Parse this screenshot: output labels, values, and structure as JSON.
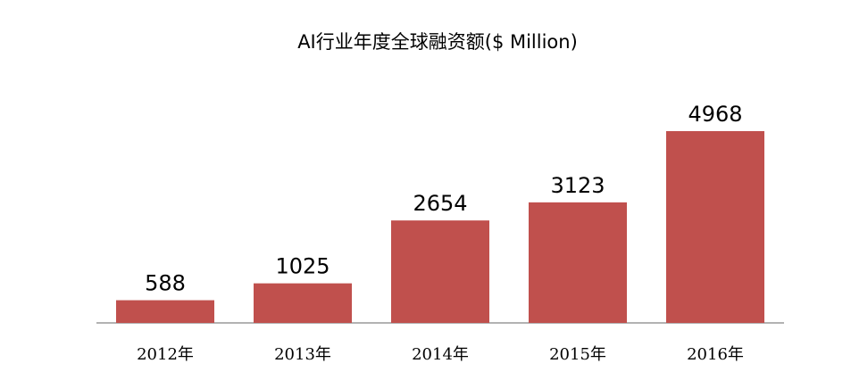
{
  "chart_data": {
    "type": "bar",
    "title": "AI行业年度全球融资额($ Million)",
    "categories": [
      "2012年",
      "2013年",
      "2014年",
      "2015年",
      "2016年"
    ],
    "values": [
      588,
      1025,
      2654,
      3123,
      4968
    ],
    "color": "#c0504d"
  }
}
